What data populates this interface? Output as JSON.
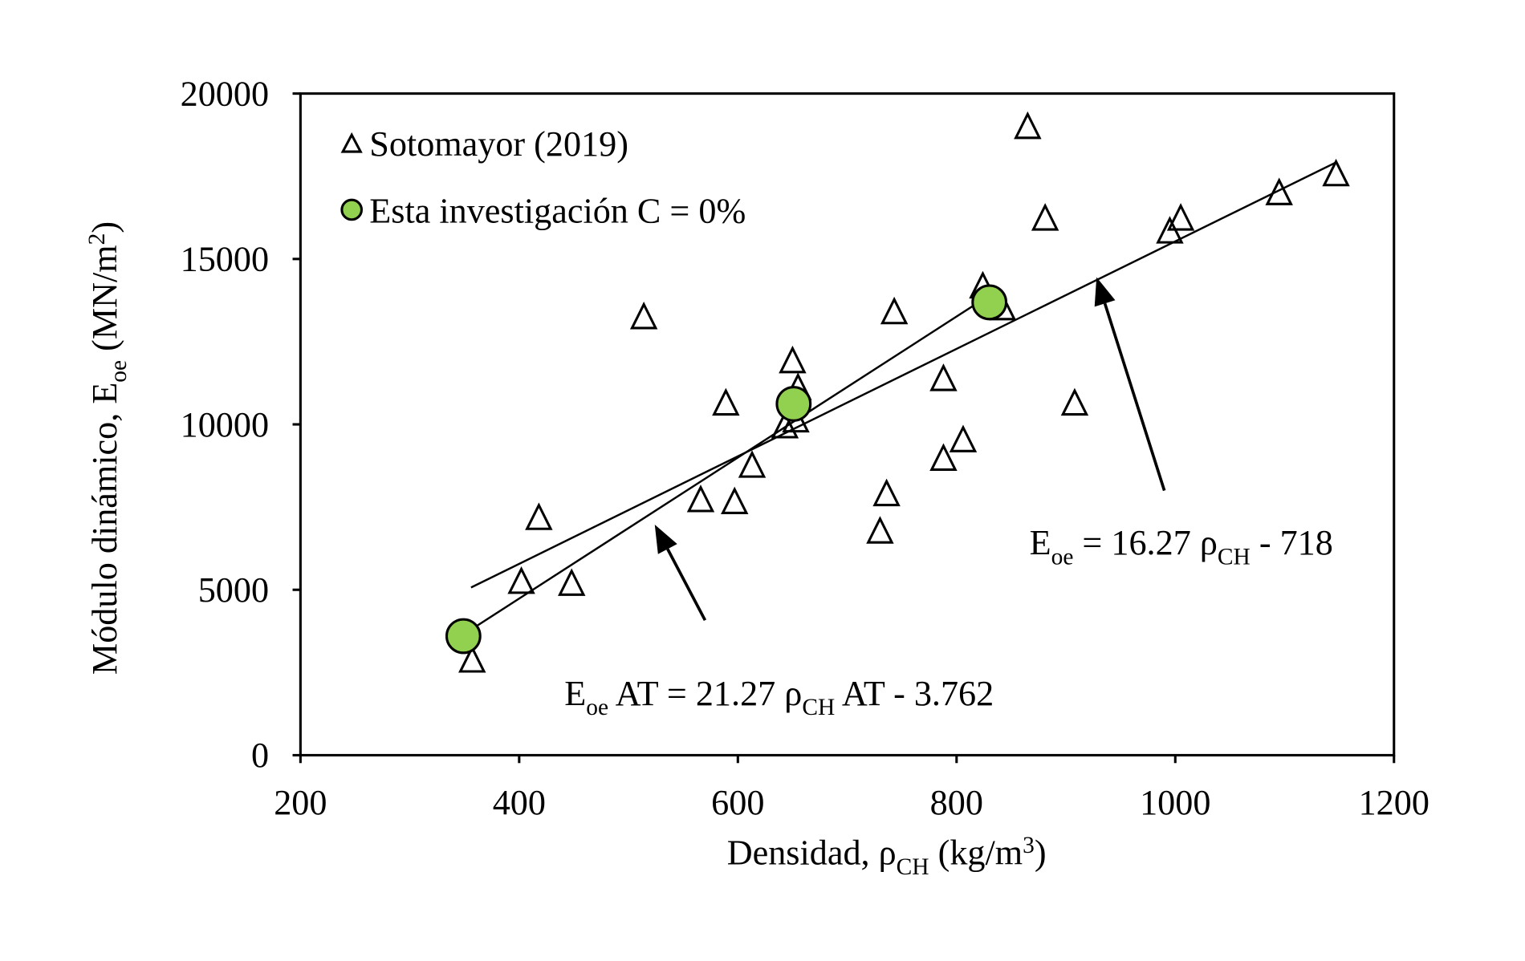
{
  "chart_data": {
    "type": "scatter",
    "title": "",
    "xlabel": "Densidad,  ρCH  (kg/m³)",
    "xlabel_parts": {
      "main": "Densidad,  ρ",
      "sub": "CH",
      "unit": "  (kg/m",
      "sup": "3",
      "end": ")"
    },
    "ylabel": "Módulo dinámico, Eoe  (MN/m²)",
    "ylabel_parts": {
      "main": "Módulo dinámico,  E",
      "sub": "oe",
      "unit": "  (MN/m",
      "sup": "2",
      "end": ")"
    },
    "xlim": [
      200,
      1200
    ],
    "ylim": [
      0,
      20000
    ],
    "xticks": [
      "200",
      "400",
      "600",
      "800",
      "1000",
      "1200"
    ],
    "yticks": [
      "0",
      "5000",
      "10000",
      "15000",
      "20000"
    ],
    "grid": false,
    "legend_position": "top-left",
    "series": [
      {
        "name": "Sotomayor (2019)",
        "marker": "triangle",
        "color": "#ffffff",
        "points": [
          [
            357,
            2830
          ],
          [
            402,
            5210
          ],
          [
            418,
            7140
          ],
          [
            448,
            5150
          ],
          [
            514,
            13210
          ],
          [
            566,
            7680
          ],
          [
            589,
            10600
          ],
          [
            597,
            7620
          ],
          [
            613,
            8720
          ],
          [
            643,
            9910
          ],
          [
            650,
            11880
          ],
          [
            653,
            10090
          ],
          [
            655,
            11070
          ],
          [
            730,
            6730
          ],
          [
            736,
            7860
          ],
          [
            743,
            13360
          ],
          [
            788,
            11340
          ],
          [
            788,
            8930
          ],
          [
            806,
            9490
          ],
          [
            824,
            14140
          ],
          [
            842,
            13480
          ],
          [
            865,
            18960
          ],
          [
            881,
            16190
          ],
          [
            908,
            10600
          ],
          [
            995,
            15800
          ],
          [
            1005,
            16190
          ],
          [
            1095,
            16960
          ],
          [
            1147,
            17530
          ]
        ]
      },
      {
        "name": "Esta investigación C = 0%",
        "marker": "circle",
        "color": "#92d050",
        "points": [
          [
            349,
            3600
          ],
          [
            651,
            10620
          ],
          [
            830,
            13690
          ]
        ]
      }
    ],
    "fit_lines": [
      {
        "name": "Sotomayor fit",
        "from": [
          356,
          5070
        ],
        "to": [
          1147,
          17920
        ]
      },
      {
        "name": "AT fit",
        "from": [
          351,
          3690
        ],
        "to": [
          830,
          13900
        ]
      }
    ],
    "annotations": [
      {
        "id": "eq1",
        "parts": {
          "a": "E",
          "a_sub": "oe",
          "b": " = 16.27 ρ",
          "b_sub": "CH",
          "c": " - 718"
        },
        "arrow_from": [
          990,
          8000
        ],
        "arrow_to": [
          928,
          14450
        ]
      },
      {
        "id": "eq2",
        "parts": {
          "a": "E",
          "a_sub": "oe",
          "b": " AT = 21.27 ρ",
          "b_sub": "CH",
          "c": " AT - 3.762"
        },
        "arrow_from": [
          570,
          4080
        ],
        "arrow_to": [
          524,
          6970
        ]
      }
    ]
  }
}
